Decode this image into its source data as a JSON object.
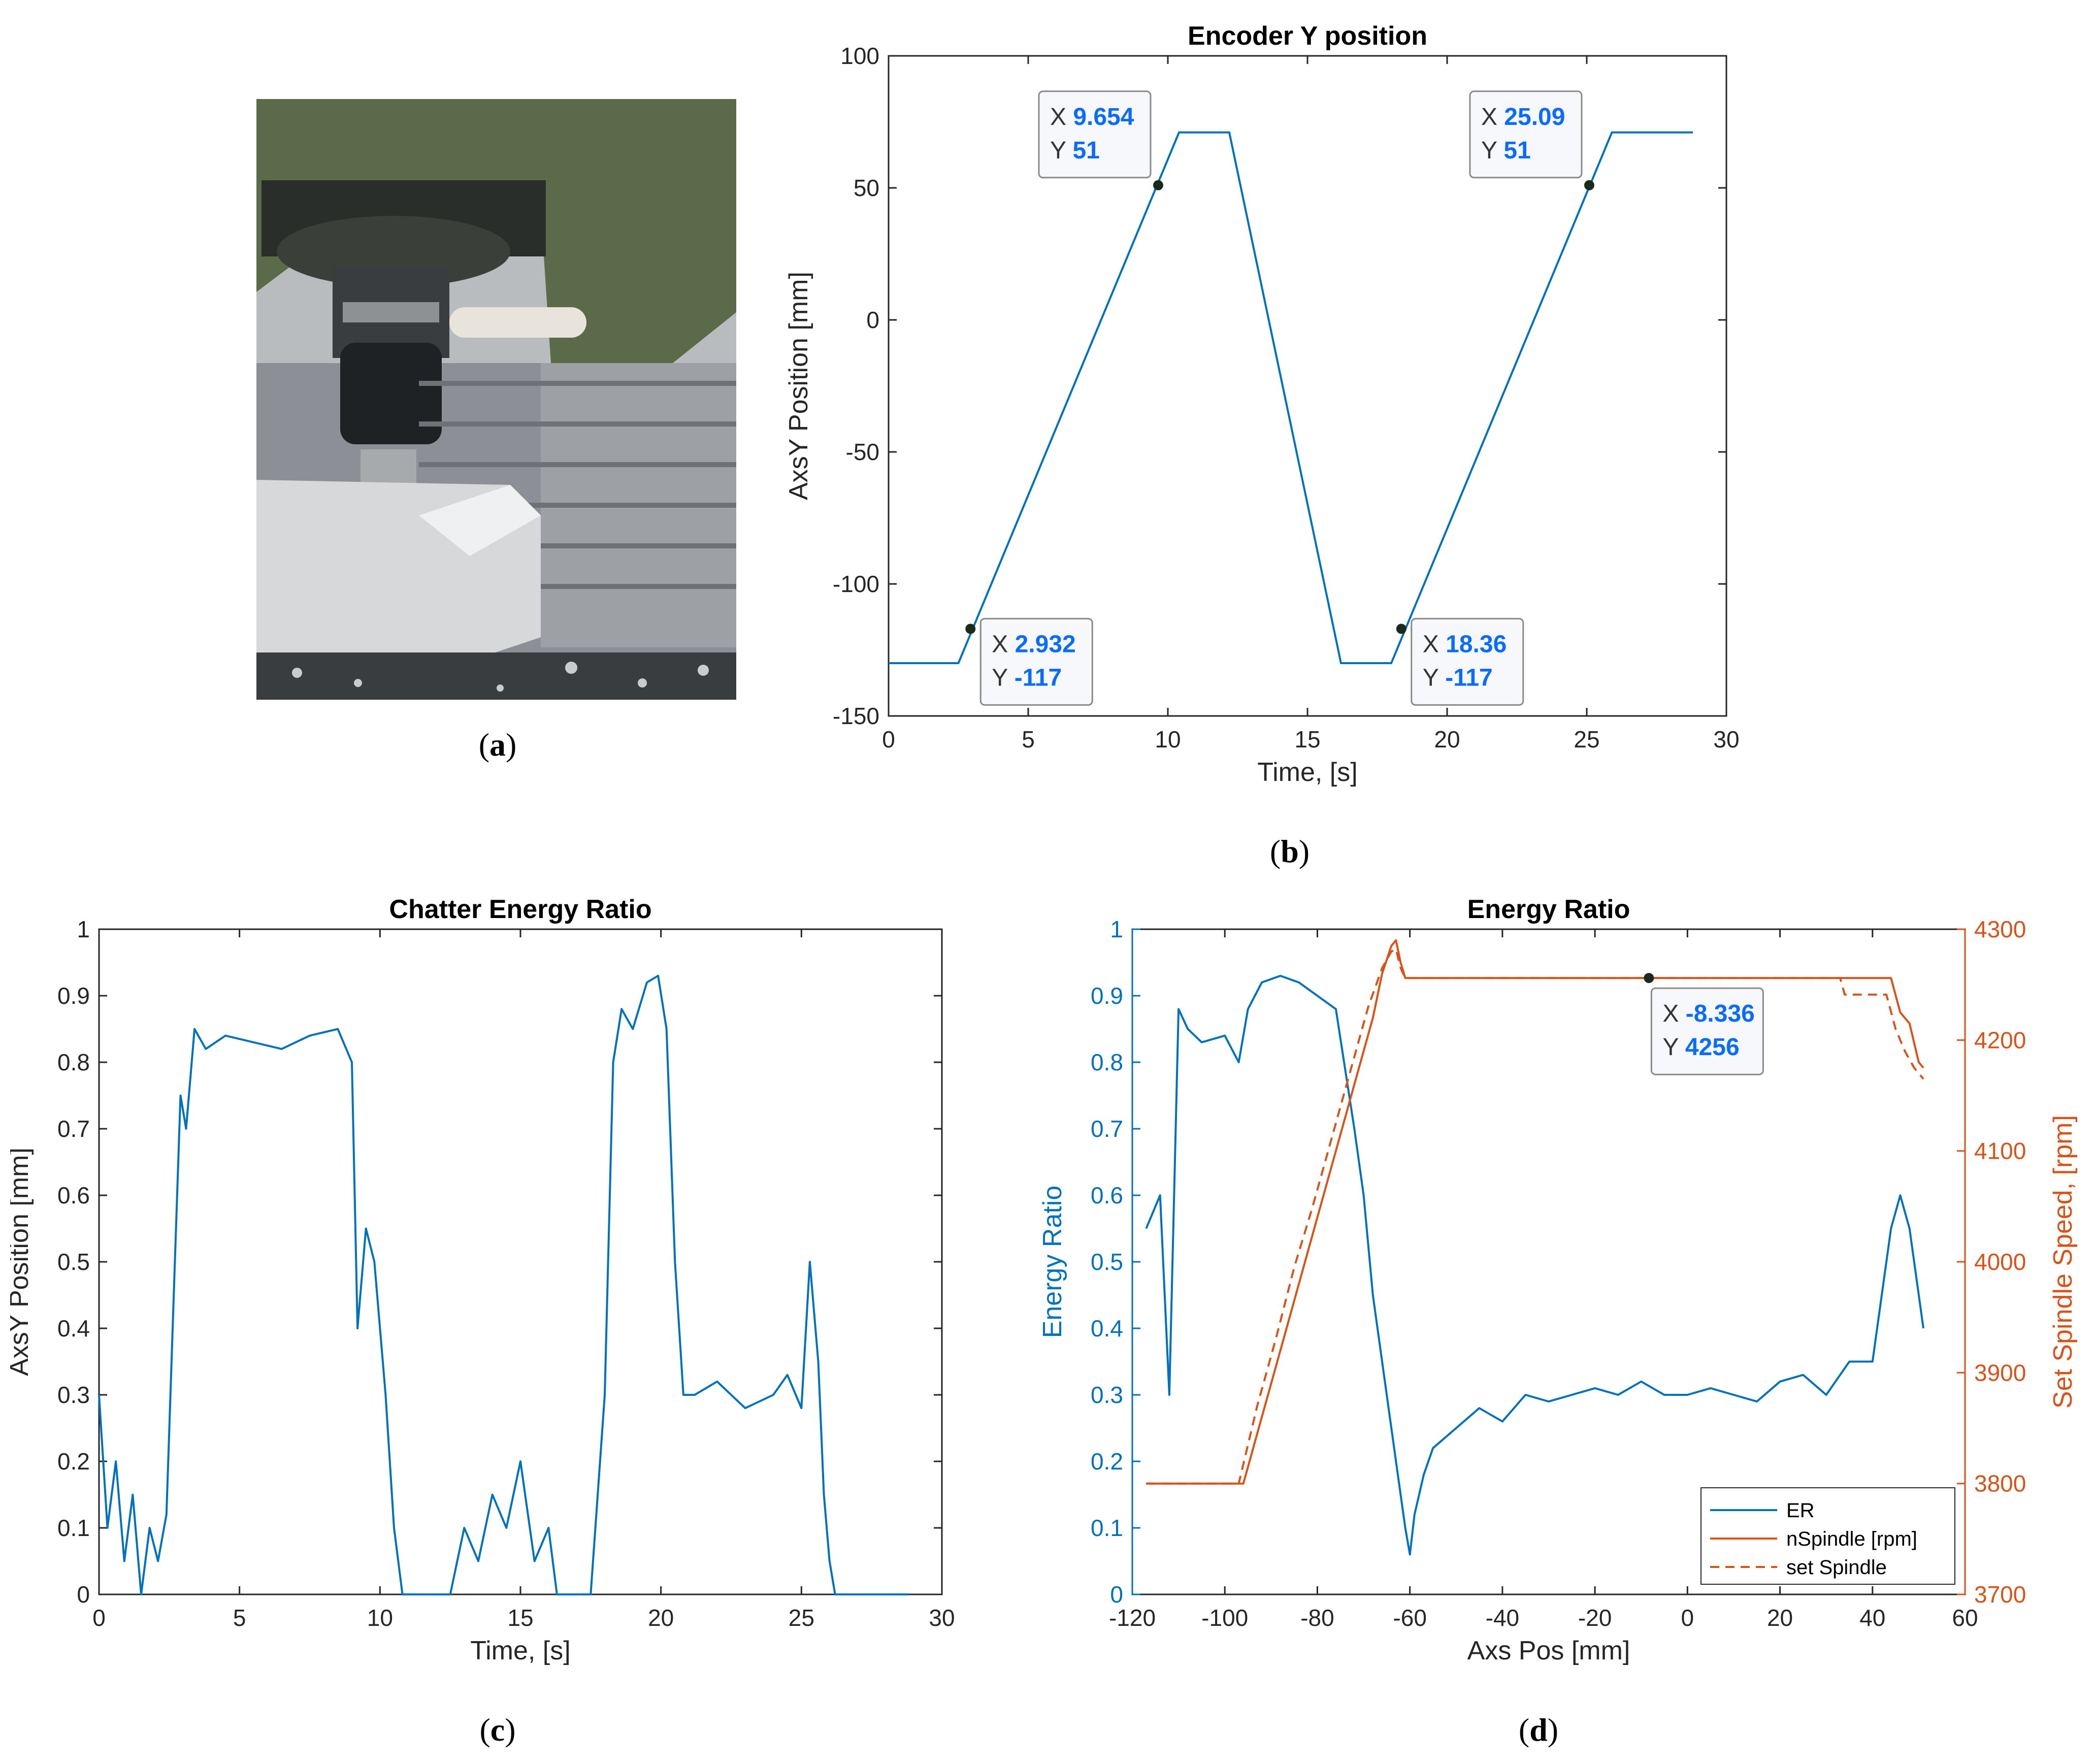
{
  "captions": {
    "a": "a",
    "b": "b",
    "c": "c",
    "d": "d"
  },
  "photo": {
    "subject": "milling machine spindle with end mill over aluminium workpiece"
  },
  "colors": {
    "blue": "#0072BD",
    "orange": "#D95319",
    "tipText": "#0a6cff"
  },
  "chart_data": [
    {
      "id": "b",
      "type": "line",
      "title": "Encoder Y position",
      "xlabel": "Time, [s]",
      "ylabel": "AxsY Position [mm]",
      "xlim": [
        0,
        30
      ],
      "ylim": [
        -150,
        100
      ],
      "xticks": [
        0,
        5,
        10,
        15,
        20,
        25,
        30
      ],
      "yticks": [
        -150,
        -100,
        -50,
        0,
        50,
        100
      ],
      "series": [
        {
          "x": [
            0,
            2.5,
            10.4,
            12.2,
            16.2,
            18.0,
            25.9,
            28.8
          ],
          "y": [
            -130,
            -130,
            71,
            71,
            -130,
            -130,
            71,
            71
          ]
        }
      ],
      "datatips": [
        {
          "x": 9.654,
          "y": 51,
          "xlabel": "X",
          "ylabel": "Y",
          "xtext": "9.654",
          "ytext": "51"
        },
        {
          "x": 25.09,
          "y": 51,
          "xlabel": "X",
          "ylabel": "Y",
          "xtext": "25.09",
          "ytext": "51"
        },
        {
          "x": 2.932,
          "y": -117,
          "xlabel": "X",
          "ylabel": "Y",
          "xtext": "2.932",
          "ytext": "-117"
        },
        {
          "x": 18.36,
          "y": -117,
          "xlabel": "X",
          "ylabel": "Y",
          "xtext": "18.36",
          "ytext": "-117"
        }
      ]
    },
    {
      "id": "c",
      "type": "line",
      "title": "Chatter Energy Ratio",
      "xlabel": "Time, [s]",
      "ylabel": "AxsY Position [mm]",
      "xlim": [
        0,
        30
      ],
      "ylim": [
        0,
        1
      ],
      "xticks": [
        0,
        5,
        10,
        15,
        20,
        25,
        30
      ],
      "yticks": [
        0,
        0.1,
        0.2,
        0.3,
        0.4,
        0.5,
        0.6,
        0.7,
        0.8,
        0.9,
        1
      ],
      "series": [
        {
          "x": [
            0,
            0.3,
            0.6,
            0.9,
            1.2,
            1.5,
            1.8,
            2.1,
            2.4,
            2.7,
            2.9,
            3.1,
            3.4,
            3.8,
            4.5,
            5.5,
            6.5,
            7.5,
            8.5,
            9.0,
            9.2,
            9.5,
            9.8,
            10.2,
            10.5,
            10.8,
            11.5,
            12.5,
            13.0,
            13.5,
            14.0,
            14.5,
            15.0,
            15.5,
            16.0,
            16.3,
            16.6,
            17.5,
            18.0,
            18.3,
            18.6,
            19.0,
            19.5,
            19.9,
            20.2,
            20.5,
            20.8,
            21.2,
            22.0,
            23.0,
            24.0,
            24.5,
            25.0,
            25.3,
            25.6,
            25.8,
            26.0,
            26.2,
            27,
            28,
            28.8
          ],
          "y": [
            0.3,
            0.1,
            0.2,
            0.05,
            0.15,
            0.0,
            0.1,
            0.05,
            0.12,
            0.5,
            0.75,
            0.7,
            0.85,
            0.82,
            0.84,
            0.83,
            0.82,
            0.84,
            0.85,
            0.8,
            0.4,
            0.55,
            0.5,
            0.3,
            0.1,
            0.0,
            0.0,
            0.0,
            0.1,
            0.05,
            0.15,
            0.1,
            0.2,
            0.05,
            0.1,
            0.0,
            0.0,
            0.0,
            0.3,
            0.8,
            0.88,
            0.85,
            0.92,
            0.93,
            0.85,
            0.5,
            0.3,
            0.3,
            0.32,
            0.28,
            0.3,
            0.33,
            0.28,
            0.5,
            0.35,
            0.15,
            0.05,
            0.0,
            0.0,
            0.0,
            0.0
          ]
        }
      ]
    },
    {
      "id": "d",
      "type": "line",
      "title": "Energy Ratio",
      "xlabel": "Axs Pos [mm]",
      "ylabel": "Energy Ratio",
      "y2label": "Set Spindle Speed, [rpm]",
      "xlim": [
        -120,
        60
      ],
      "ylim": [
        0,
        1
      ],
      "y2lim": [
        3700,
        4300
      ],
      "xticks": [
        -120,
        -100,
        -80,
        -60,
        -40,
        -20,
        0,
        20,
        40,
        60
      ],
      "yticks": [
        0,
        0.1,
        0.2,
        0.3,
        0.4,
        0.5,
        0.6,
        0.7,
        0.8,
        0.9,
        1
      ],
      "y2ticks": [
        3700,
        3800,
        3900,
        4000,
        4100,
        4200,
        4300
      ],
      "legend": {
        "position": "bottom-right",
        "entries": [
          "ER",
          "nSpindle [rpm]",
          "set Spindle"
        ]
      },
      "series": [
        {
          "name": "ER",
          "axis": "left",
          "x": [
            -117,
            -114,
            -112,
            -110,
            -108,
            -105,
            -100,
            -97,
            -95,
            -92,
            -88,
            -84,
            -80,
            -76,
            -72,
            -70,
            -68,
            -66,
            -63,
            -61,
            -60,
            -59,
            -57,
            -55,
            -50,
            -45,
            -40,
            -35,
            -30,
            -25,
            -20,
            -15,
            -10,
            -5,
            0,
            5,
            10,
            15,
            20,
            25,
            30,
            35,
            40,
            44,
            46,
            48,
            50,
            51
          ],
          "y": [
            0.55,
            0.6,
            0.3,
            0.88,
            0.85,
            0.83,
            0.84,
            0.8,
            0.88,
            0.92,
            0.93,
            0.92,
            0.9,
            0.88,
            0.7,
            0.6,
            0.45,
            0.35,
            0.2,
            0.1,
            0.06,
            0.12,
            0.18,
            0.22,
            0.25,
            0.28,
            0.26,
            0.3,
            0.29,
            0.3,
            0.31,
            0.3,
            0.32,
            0.3,
            0.3,
            0.31,
            0.3,
            0.29,
            0.32,
            0.33,
            0.3,
            0.35,
            0.35,
            0.55,
            0.6,
            0.55,
            0.45,
            0.4
          ]
        },
        {
          "name": "nSpindle [rpm]",
          "axis": "right",
          "x": [
            -117,
            -96,
            -92,
            -88,
            -84,
            -80,
            -76,
            -72,
            -68,
            -66,
            -64,
            -63,
            -62,
            -61,
            -60,
            20,
            44,
            46,
            48,
            50,
            51
          ],
          "y": [
            3800,
            3800,
            3860,
            3920,
            3980,
            4040,
            4100,
            4160,
            4220,
            4260,
            4285,
            4290,
            4270,
            4256,
            4256,
            4256,
            4256,
            4225,
            4215,
            4180,
            4175
          ]
        },
        {
          "name": "set Spindle",
          "axis": "right",
          "x": [
            -117,
            -97,
            -93,
            -89,
            -85,
            -81,
            -77,
            -73,
            -69,
            -66,
            -64,
            -63,
            -62,
            -61,
            -60,
            33,
            34,
            43,
            45,
            47,
            49,
            51
          ],
          "y": [
            3800,
            3800,
            3870,
            3930,
            3995,
            4050,
            4110,
            4170,
            4230,
            4265,
            4280,
            4282,
            4265,
            4256,
            4256,
            4256,
            4241,
            4241,
            4210,
            4190,
            4175,
            4165
          ]
        }
      ],
      "datatips": [
        {
          "x": -8.336,
          "y": 4256,
          "axis": "right",
          "xlabel": "X",
          "ylabel": "Y",
          "xtext": "-8.336",
          "ytext": "4256"
        }
      ]
    }
  ]
}
